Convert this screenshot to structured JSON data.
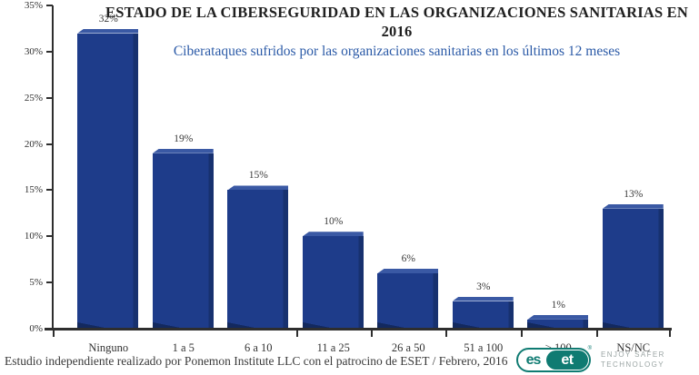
{
  "header": {
    "title": "ESTADO DE LA CIBERSEGURIDAD EN LAS ORGANIZACIONES SANITARIAS EN 2016",
    "subtitle": "Ciberataques sufridos por las organizaciones sanitarias en los últimos 12 meses"
  },
  "chart_data": {
    "type": "bar",
    "title": "ESTADO DE LA CIBERSEGURIDAD EN LAS ORGANIZACIONES SANITARIAS EN 2016",
    "subtitle": "Ciberataques sufridos por las organizaciones sanitarias en los últimos 12 meses",
    "categories": [
      "Ninguno",
      "1 a 5",
      "6 a 10",
      "11 a 25",
      "26 a 50",
      "51 a 100",
      "> 100",
      "NS/NC"
    ],
    "values": [
      32,
      19,
      15,
      10,
      6,
      3,
      1,
      13
    ],
    "data_labels": [
      "32%",
      "19%",
      "15%",
      "10%",
      "6%",
      "3%",
      "1%",
      "13%"
    ],
    "xlabel": "",
    "ylabel": "",
    "ylim": [
      0,
      35
    ],
    "ytick_step": 5,
    "ytick_labels": [
      "0%",
      "5%",
      "10%",
      "15%",
      "20%",
      "25%",
      "30%",
      "35%"
    ],
    "grid": false,
    "legend": false,
    "bar_color": "#1E3C8A"
  },
  "footer": {
    "text": "Estudio independiente realizado por Ponemon Institute LLC con el patrocino de ESET / Febrero, 2016"
  },
  "logo": {
    "brand_left": "es",
    "brand_right": "et",
    "registered": "®",
    "tagline_line1": "ENJOY SAFER",
    "tagline_line2": "TECHNOLOGY"
  },
  "colors": {
    "bar_face": "#1E3C8A",
    "bar_top": "#3A59A4",
    "bar_shadow": "#13295E",
    "title": "#1F1F1F",
    "subtitle": "#2B5AA7",
    "axis": "#2E2E2E",
    "label_text": "#3A3A3A",
    "eset_teal": "#0F7B72",
    "tagline_gray": "#9BA5A4"
  }
}
